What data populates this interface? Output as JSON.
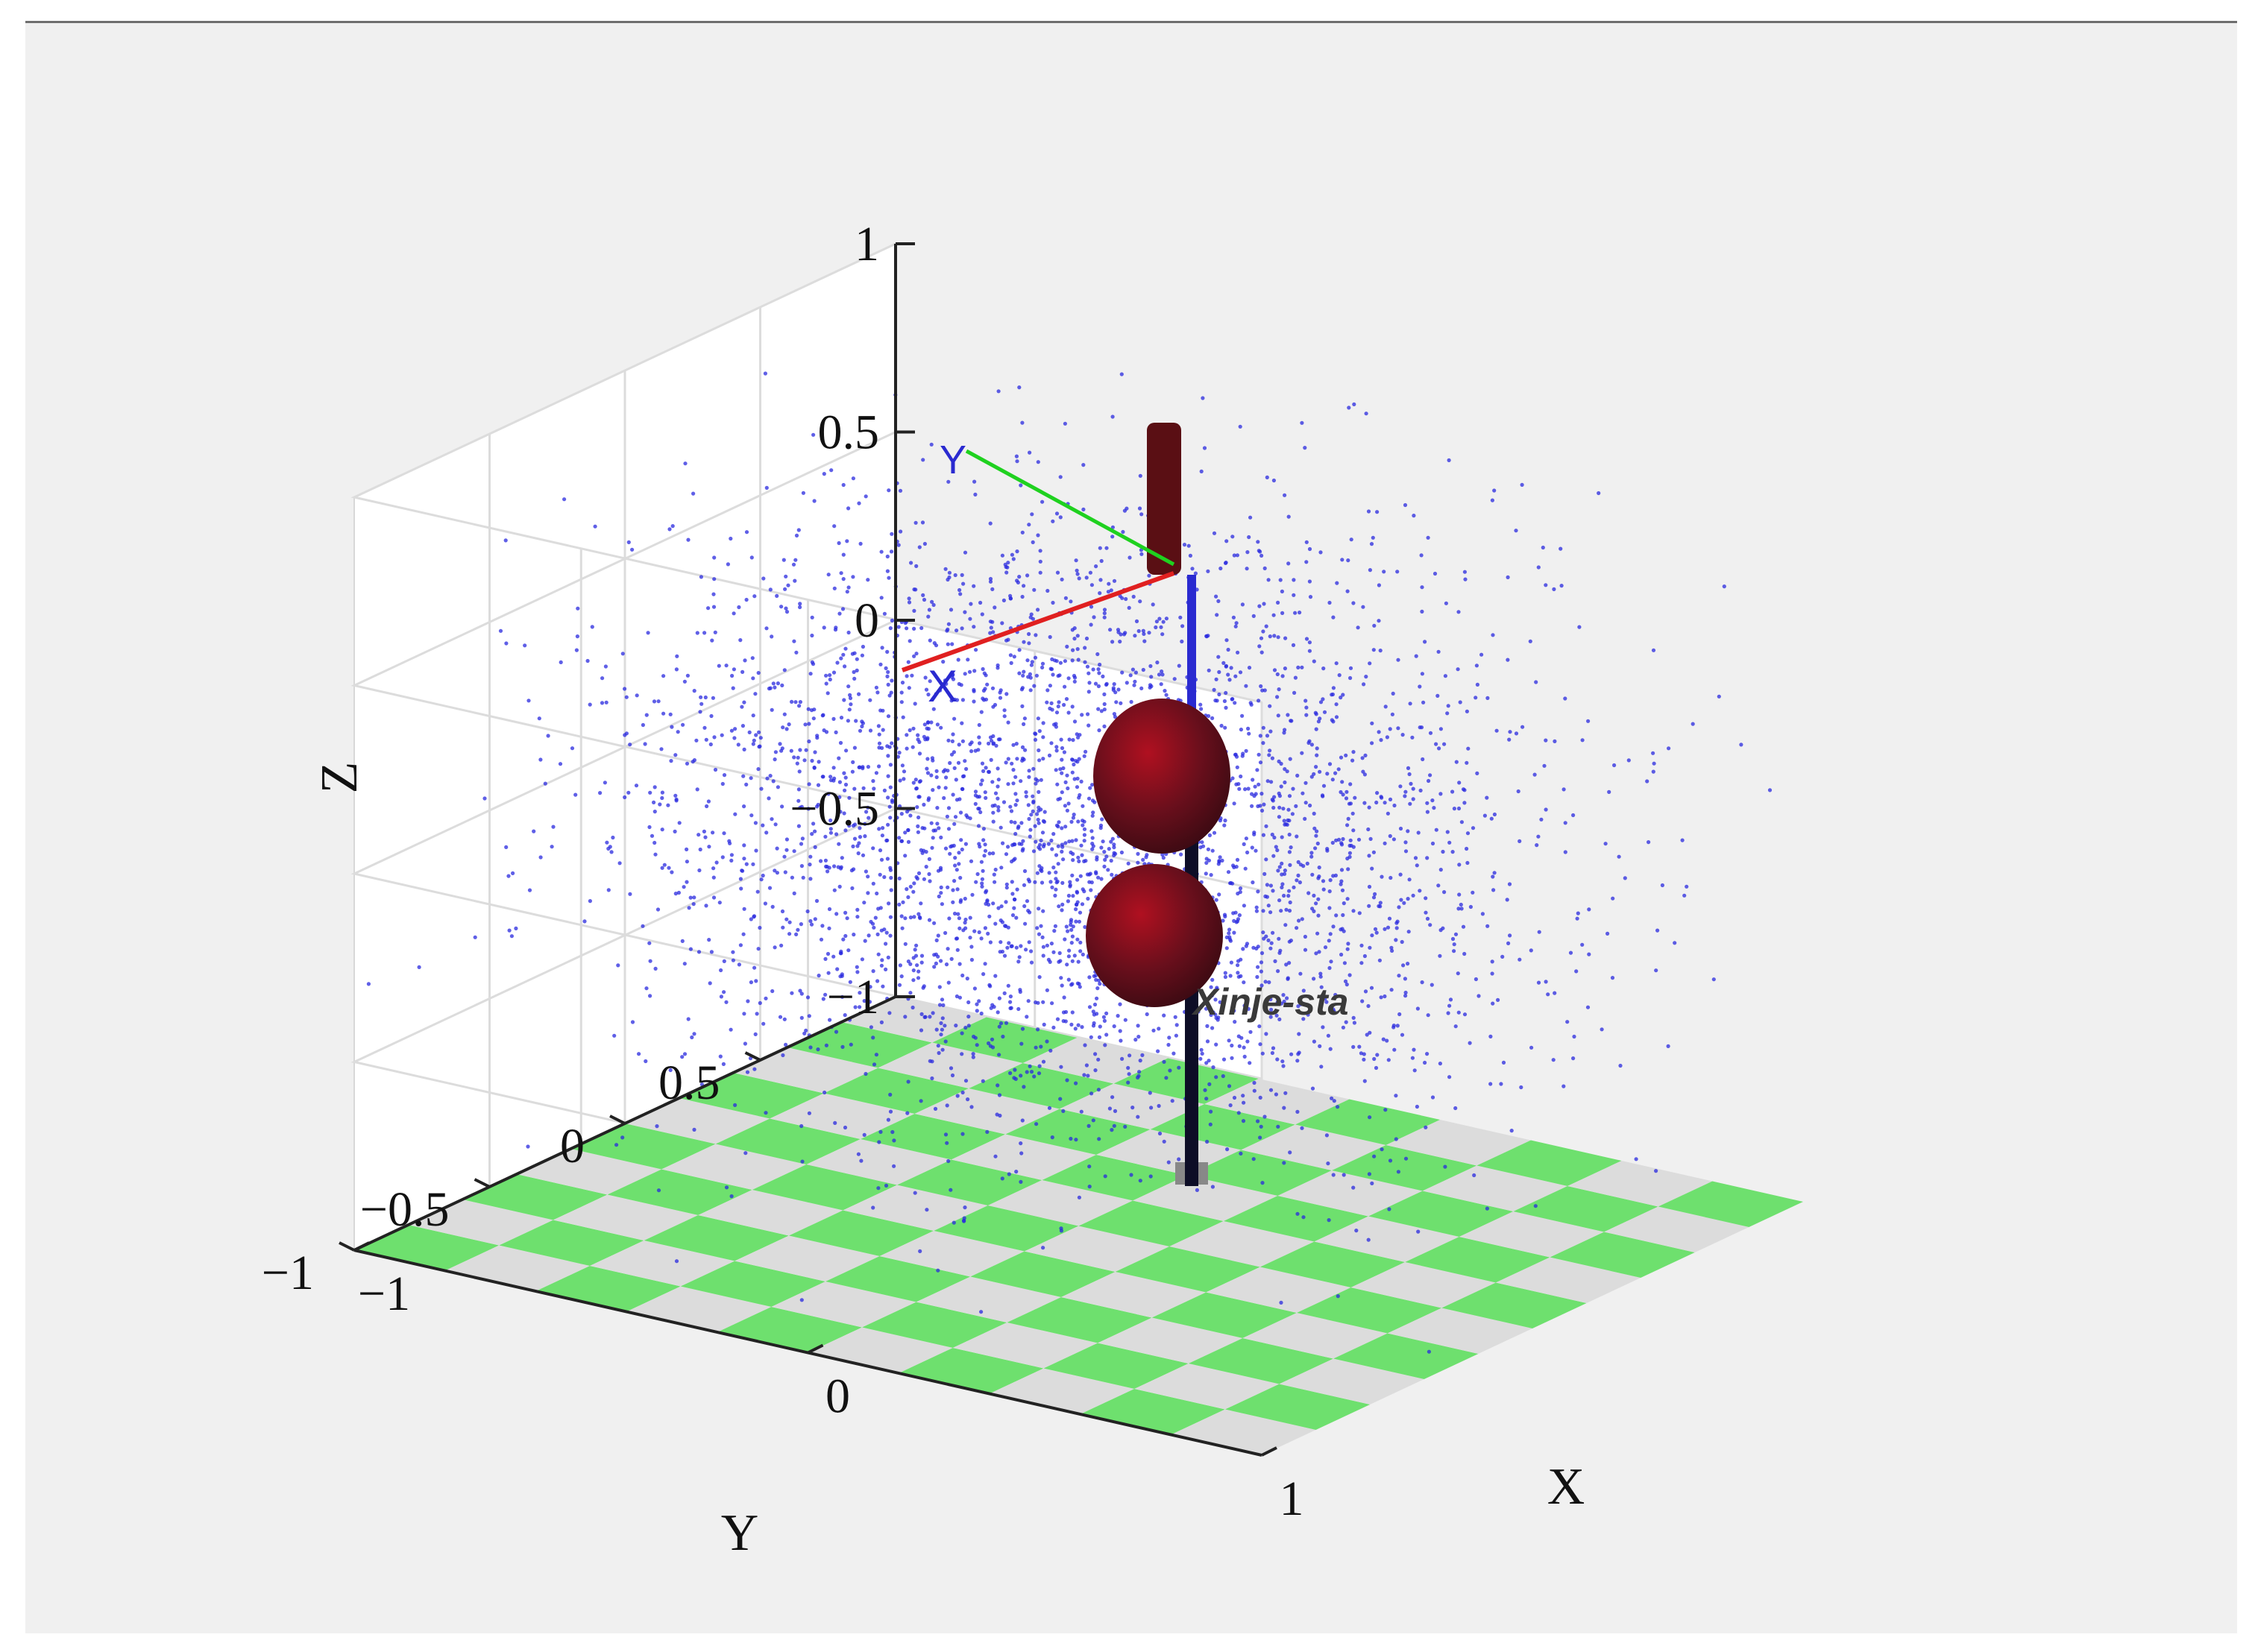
{
  "chart_data": {
    "type": "scatter",
    "projection": "3d",
    "title": "",
    "xlabel": "X",
    "ylabel": "Y",
    "zlabel": "Z",
    "xlim": [
      -1,
      1
    ],
    "ylim": [
      -1,
      1
    ],
    "zlim": [
      -1,
      1
    ],
    "x_ticks": [
      "−1",
      "0",
      "1"
    ],
    "y_ticks": [
      "−1",
      "−0.5",
      "0",
      "0.5"
    ],
    "z_ticks": [
      "−1",
      "−0.5",
      "0",
      "0.5",
      "1"
    ],
    "grid": true,
    "point_color": "#2a2adf",
    "floor_colors": [
      "#6ee06e",
      "#dcdcdc"
    ],
    "robot_link_color": "#5a0f14",
    "robot_label": "Xinje-sta"
  }
}
